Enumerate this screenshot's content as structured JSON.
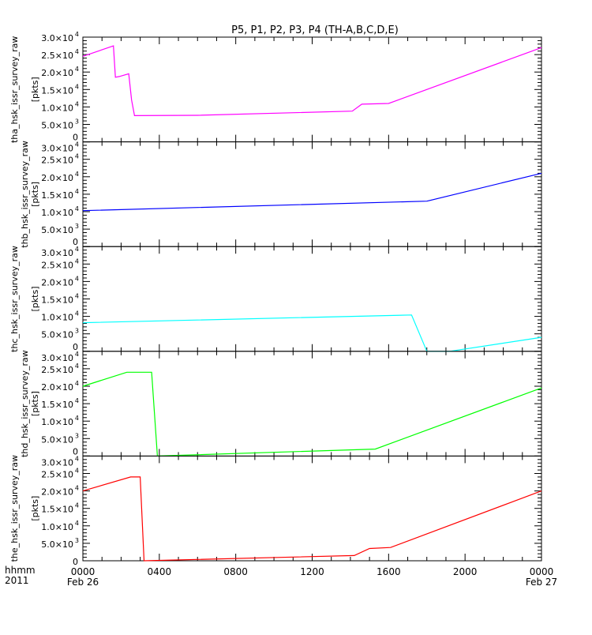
{
  "chart_data": {
    "type": "line",
    "title": "P5, P1, P2, P3, P4 (TH-A,B,C,D,E)",
    "xlabel_left": [
      "hhmm",
      "2011"
    ],
    "x_range_hours": [
      0,
      24
    ],
    "x_ticks": [
      {
        "h": 0,
        "label": "0000",
        "sub": "Feb 26"
      },
      {
        "h": 4,
        "label": "0400",
        "sub": ""
      },
      {
        "h": 8,
        "label": "0800",
        "sub": ""
      },
      {
        "h": 12,
        "label": "1200",
        "sub": ""
      },
      {
        "h": 16,
        "label": "1600",
        "sub": ""
      },
      {
        "h": 20,
        "label": "2000",
        "sub": ""
      },
      {
        "h": 24,
        "label": "0000",
        "sub": "Feb 27"
      }
    ],
    "ylim": [
      0,
      30000
    ],
    "y_ticks": [
      {
        "v": 0,
        "mant": "0",
        "exp": ""
      },
      {
        "v": 5000,
        "mant": "5.0×10",
        "exp": "3"
      },
      {
        "v": 10000,
        "mant": "1.0×10",
        "exp": "4"
      },
      {
        "v": 15000,
        "mant": "1.5×10",
        "exp": "4"
      },
      {
        "v": 20000,
        "mant": "2.0×10",
        "exp": "4"
      },
      {
        "v": 25000,
        "mant": "2.5×10",
        "exp": "4"
      },
      {
        "v": 30000,
        "mant": "3.0×10",
        "exp": "4"
      }
    ],
    "unit": "[pkts]",
    "series": [
      {
        "name": "tha_hsk_issr_survey_raw",
        "color": "#ff00ff",
        "x": [
          0,
          1.6,
          1.7,
          1.9,
          2.4,
          2.55,
          2.7,
          6,
          14.1,
          14.6,
          16,
          24
        ],
        "y": [
          24500,
          27500,
          18500,
          18700,
          19500,
          12000,
          7500,
          7600,
          8800,
          10800,
          11000,
          27000
        ]
      },
      {
        "name": "thb_hsk_issr_survey_raw",
        "color": "#0000ff",
        "x": [
          0,
          18,
          24
        ],
        "y": [
          10300,
          13000,
          21000
        ]
      },
      {
        "name": "thc_hsk_issr_survey_raw",
        "color": "#00ffff",
        "x": [
          0,
          17.2,
          18,
          19.2,
          24
        ],
        "y": [
          8200,
          10400,
          0,
          0,
          4000
        ]
      },
      {
        "name": "thd_hsk_issr_survey_raw",
        "color": "#00ff00",
        "x": [
          0,
          2.3,
          3.6,
          3.9,
          15.3,
          24
        ],
        "y": [
          20000,
          24000,
          24000,
          0,
          2000,
          19500
        ]
      },
      {
        "name": "the_hsk_issr_survey_raw",
        "color": "#ff0000",
        "x": [
          0,
          2.5,
          3,
          3.2,
          14.2,
          15,
          16.1,
          24
        ],
        "y": [
          20000,
          24000,
          24000,
          0,
          1500,
          3500,
          3800,
          20000
        ]
      }
    ]
  }
}
